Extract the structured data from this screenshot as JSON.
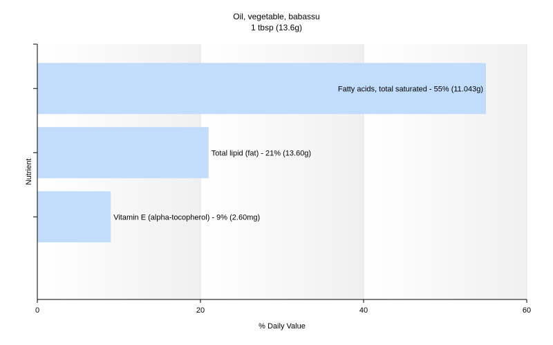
{
  "chart_data": {
    "type": "bar",
    "orientation": "horizontal",
    "title": "Oil, vegetable, babassu",
    "subtitle": "1 tbsp (13.6g)",
    "xlabel": "% Daily Value",
    "ylabel": "Nutrient",
    "xlim": [
      0,
      60
    ],
    "xticks": [
      0,
      20,
      40,
      60
    ],
    "grid": true,
    "legend": "none",
    "bar_color": "#c2dcfc",
    "categories": [
      "Fatty acids, total saturated",
      "Total lipid (fat)",
      "Vitamin E (alpha-tocopherol)"
    ],
    "values": [
      55,
      21,
      9
    ],
    "data_labels": [
      "Fatty acids, total saturated - 55% (11.043g)",
      "Total lipid (fat) - 21% (13.60g)",
      "Vitamin E (alpha-tocopherol) - 9% (2.60mg)"
    ]
  }
}
